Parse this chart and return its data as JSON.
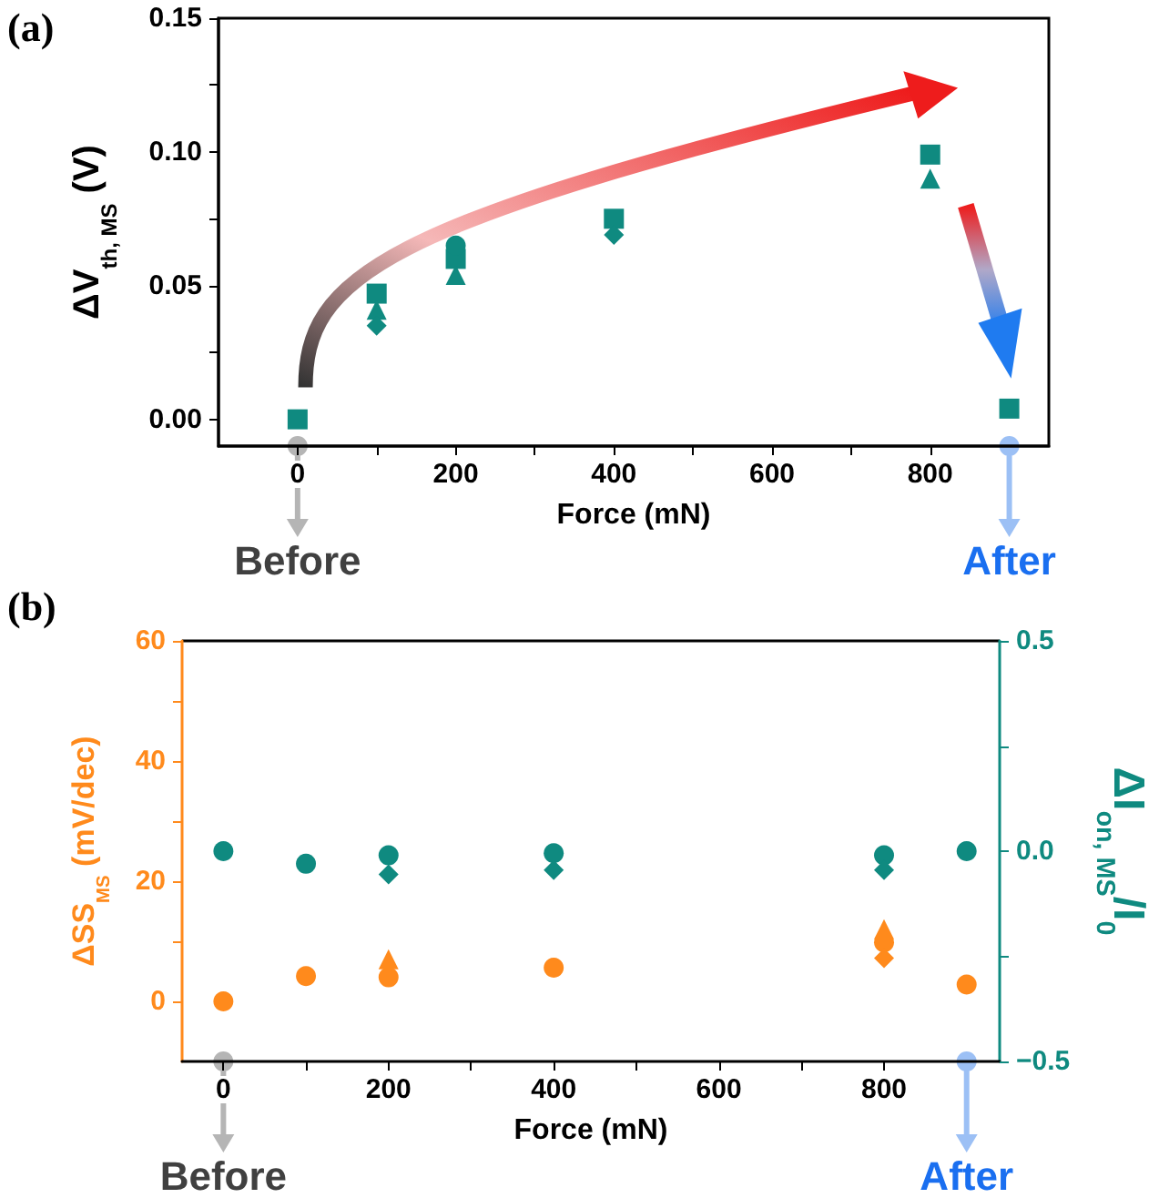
{
  "chart_data": [
    {
      "type": "scatter",
      "xlabel": "Force (mN)",
      "ylabel": "ΔV$_{th, MS}$ (V)",
      "annotations": [
        "(a)",
        "Before",
        "After"
      ],
      "x": [
        0,
        100,
        200,
        400,
        800,
        900
      ],
      "series": [
        {
          "color": "#0f8a80",
          "marker": "square",
          "values": [
            0,
            0.047,
            0.06,
            0.075,
            0.099,
            0.004
          ]
        },
        {
          "color": "#0f8a80",
          "marker": "triangle",
          "values": [
            null,
            0.041,
            0.054,
            null,
            0.09,
            null
          ]
        },
        {
          "color": "#0f8a80",
          "marker": "diamond",
          "values": [
            null,
            0.035,
            null,
            0.069,
            null,
            null
          ]
        },
        {
          "color": "#0f8a80",
          "marker": "circle",
          "values": [
            null,
            null,
            0.065,
            null,
            null,
            null
          ]
        }
      ],
      "xlim": [
        -100,
        950
      ],
      "xticks": [
        0,
        {
          "value": 100,
          "label": null
        },
        200,
        {
          "value": 300,
          "label": null
        },
        400,
        {
          "value": 500,
          "label": null
        },
        600,
        {
          "value": 700,
          "label": null
        },
        800
      ],
      "ylim": [
        -0.01,
        0.15
      ],
      "yticks": [
        {
          "value": 0,
          "label": "0.00"
        },
        {
          "value": 0.025,
          "label": null
        },
        {
          "value": 0.05,
          "label": "0.05"
        },
        {
          "value": 0.075,
          "label": null
        },
        {
          "value": 0.1,
          "label": "0.10"
        },
        {
          "value": 0.125,
          "label": null
        },
        {
          "value": 0.15,
          "label": "0.15"
        }
      ],
      "grid": false
    },
    {
      "type": "scatter",
      "xlabel": "Force (mN)",
      "ylabel": "ΔSS$_{MS}$ (mV/dec)",
      "y2label": "ΔI$_{on, MS}$/I$_{0}$",
      "annotations": [
        "(b)",
        "Before",
        "After"
      ],
      "x": [
        0,
        100,
        200,
        400,
        800,
        900
      ],
      "series": [
        {
          "color": "#ff8a1c",
          "marker": "circle",
          "values": [
            0,
            4.2,
            4.0,
            5.6,
            9.8,
            2.8
          ]
        },
        {
          "color": "#ff8a1c",
          "marker": "triangle",
          "values": [
            null,
            null,
            7.0,
            null,
            12.0,
            null
          ]
        },
        {
          "color": "#ff8a1c",
          "marker": "diamond",
          "values": [
            null,
            null,
            null,
            null,
            7.2,
            null
          ]
        },
        {
          "color": "#0f8a80",
          "marker": "circle",
          "axis": "y2",
          "values": [
            0,
            -0.03,
            -0.01,
            -0.005,
            -0.01,
            0
          ]
        },
        {
          "color": "#0f8a80",
          "marker": "diamond",
          "axis": "y2",
          "values": [
            null,
            null,
            -0.055,
            -0.045,
            -0.045,
            null
          ]
        }
      ],
      "xlim": [
        -50,
        940
      ],
      "xticks": [
        0,
        {
          "value": 100,
          "label": null
        },
        200,
        {
          "value": 300,
          "label": null
        },
        400,
        {
          "value": 500,
          "label": null
        },
        600,
        {
          "value": 700,
          "label": null
        },
        800
      ],
      "ylim": [
        -10,
        60
      ],
      "yticks": [
        0,
        {
          "value": 10,
          "label": null
        },
        20,
        {
          "value": 30,
          "label": null
        },
        40,
        {
          "value": 50,
          "label": null
        },
        60
      ],
      "y2lim": [
        -0.5,
        0.5
      ],
      "y2ticks": [
        {
          "value": -0.5,
          "label": "−0.5"
        },
        {
          "value": -0.25,
          "label": null
        },
        {
          "value": 0,
          "label": "0.0"
        },
        {
          "value": 0.25,
          "label": null
        },
        {
          "value": 0.5,
          "label": "0.5"
        }
      ],
      "grid": false
    }
  ]
}
